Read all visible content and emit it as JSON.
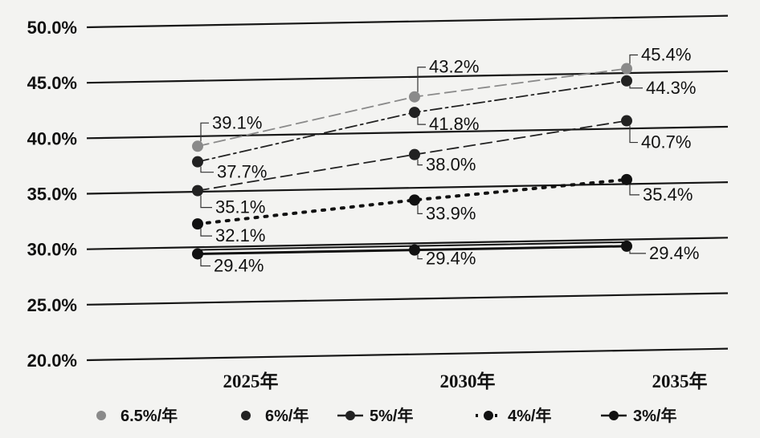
{
  "chart_data": {
    "type": "line",
    "categories": [
      "2025年",
      "2030年",
      "2035年"
    ],
    "ylim": [
      20,
      50
    ],
    "y_ticks": [
      "20.0%",
      "25.0%",
      "30.0%",
      "35.0%",
      "40.0%",
      "45.0%",
      "50.0%"
    ],
    "grid": true,
    "legend_position": "bottom",
    "series": [
      {
        "name": "6.5%/年",
        "values": [
          39.1,
          43.2,
          45.4
        ],
        "labels": [
          "39.1%",
          "43.2%",
          "45.4%"
        ],
        "color": "#8a8a8a",
        "dash": "dash"
      },
      {
        "name": "6%/年",
        "values": [
          37.7,
          41.8,
          44.3
        ],
        "labels": [
          "37.7%",
          "41.8%",
          "44.3%"
        ],
        "color": "#222222",
        "dash": "dashdot"
      },
      {
        "name": "5%/年",
        "values": [
          35.1,
          38.0,
          40.7
        ],
        "labels": [
          "35.1%",
          "38.0%",
          "40.7%"
        ],
        "color": "#222222",
        "dash": "dash"
      },
      {
        "name": "4%/年",
        "values": [
          32.1,
          33.9,
          35.4
        ],
        "labels": [
          "32.1%",
          "33.9%",
          "35.4%"
        ],
        "color": "#111111",
        "dash": "dot"
      },
      {
        "name": "3%/年",
        "values": [
          29.4,
          29.4,
          29.4
        ],
        "labels": [
          "29.4%",
          "29.4%",
          "29.4%"
        ],
        "color": "#111111",
        "dash": "solid"
      }
    ]
  }
}
